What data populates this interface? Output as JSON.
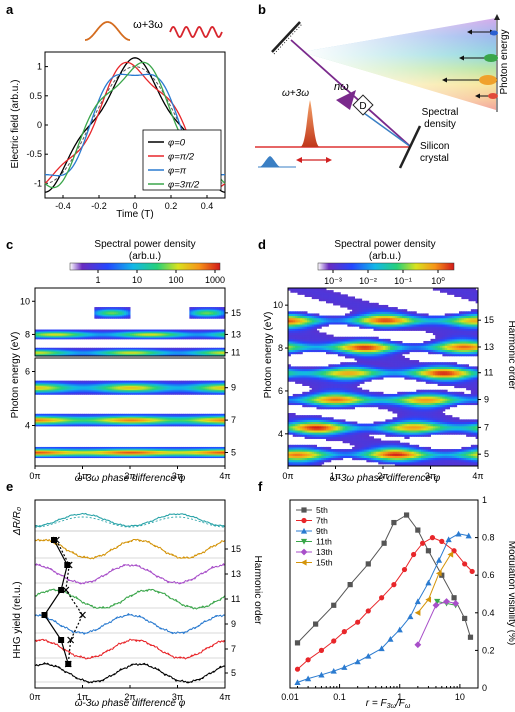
{
  "panel_letters": [
    "a",
    "b",
    "c",
    "d",
    "e",
    "f"
  ],
  "panel_a": {
    "header_label": "ω+3ω",
    "chart_data": {
      "type": "line",
      "xlabel": "Time (T)",
      "ylabel": "Electric field (arb.u.)",
      "xlim": [
        -0.5,
        0.5
      ],
      "ylim": [
        -1.25,
        1.25
      ],
      "x_ticks": [
        -0.4,
        -0.2,
        0,
        0.2,
        0.4
      ],
      "x_tick_labels": [
        "-0.4",
        "-0.2",
        "0",
        "0.2",
        "0.4"
      ],
      "y_ticks": [
        -1,
        -0.5,
        0,
        0.5,
        1
      ],
      "y_tick_labels": [
        "-1",
        "-0.5",
        "0",
        "0.5",
        "1"
      ],
      "third_harmonic_amplitude": 0.15,
      "series": [
        {
          "name": "φ=0",
          "phase": 0,
          "color": "#000000"
        },
        {
          "name": "φ=π/2",
          "phase": 1.5708,
          "color": "#e8262a"
        },
        {
          "name": "φ=π",
          "phase": 3.1416,
          "color": "#2b7bd0"
        },
        {
          "name": "φ=3π/2",
          "phase": 4.7124,
          "color": "#3aa64a"
        }
      ],
      "reference": {
        "name": "",
        "style": "dashed",
        "color": "#555555"
      },
      "legend": "bottom-right"
    }
  },
  "panel_b": {
    "labels": {
      "photon_energy": "Photon energy",
      "spectral_density": "Spectral density",
      "n_omega": "nω",
      "beam": "ω+3ω",
      "detector": "D",
      "crystal_line1": "Silicon",
      "crystal_line2": "crystal"
    },
    "colors": {
      "beam": "#7a2a8c",
      "pulse_red": "#d2401a",
      "pulse_blue": "#3a7fc4",
      "arrow": "#d12020"
    }
  },
  "panel_c": {
    "colorbar_title_line1": "Spectral power density",
    "colorbar_title_line2": "(arb.u.)",
    "colorbar_ticks": [
      "1",
      "10",
      "100",
      "1000"
    ],
    "chart_data": {
      "type": "heatmap",
      "xlabel": "ω-3ω phase difference φ",
      "ylabel": "Photon energy (eV)",
      "xlim": [
        0,
        4
      ],
      "x_tick_labels": [
        "0π",
        "1π",
        "2π",
        "3π",
        "4π"
      ],
      "upper_ylim": [
        6.7,
        10.8
      ],
      "upper_y_ticks": [
        8,
        10
      ],
      "upper_y_tick_labels": [
        "8",
        "10"
      ],
      "lower_ylim": [
        2.5,
        6.5
      ],
      "lower_y_ticks": [
        4,
        6
      ],
      "lower_y_tick_labels": [
        "4",
        "6"
      ],
      "harmonic_labels": [
        "15",
        "13",
        "11",
        "9",
        "7",
        "5"
      ],
      "bands": [
        {
          "order": 15,
          "energy": 9.3,
          "width": 0.6,
          "base": 0.05,
          "amp": 0.6,
          "phase_shift": 1.6,
          "sparse": true
        },
        {
          "order": 13,
          "energy": 8.0,
          "width": 0.5,
          "base": 0.55,
          "amp": 0.2,
          "phase_shift": 0.4,
          "sparse": false
        },
        {
          "order": 11,
          "energy": 6.9,
          "width": 0.5,
          "base": 0.55,
          "amp": 0.2,
          "phase_shift": 0.0,
          "sparse": false
        },
        {
          "order": 9,
          "energy": 5.4,
          "width": 0.45,
          "base": 0.6,
          "amp": 0.2,
          "phase_shift": 0.0,
          "sparse": false
        },
        {
          "order": 7,
          "energy": 4.2,
          "width": 0.4,
          "base": 0.75,
          "amp": 0.15,
          "phase_shift": 0.0,
          "sparse": false
        },
        {
          "order": 5,
          "energy": 3.0,
          "width": 0.35,
          "base": 0.85,
          "amp": 0.1,
          "phase_shift": 0.0,
          "sparse": false
        }
      ]
    }
  },
  "panel_d": {
    "colorbar_title": "Spectral power density",
    "colorbar_units": "(arb.u.)",
    "colorbar_ticks": [
      "10⁻³",
      "10⁻²",
      "10⁻¹",
      "10⁰"
    ],
    "chart_data": {
      "type": "heatmap",
      "xlabel": "ω-3ω phase difference φ",
      "ylabel": "Photon energy (eV)",
      "y2label": "Harmonic order",
      "xlim": [
        0,
        4
      ],
      "ylim": [
        2.5,
        10.8
      ],
      "x_tick_labels": [
        "0π",
        "1π",
        "2π",
        "3π",
        "4π"
      ],
      "y_ticks": [
        4,
        6,
        8,
        10
      ],
      "y_tick_labels": [
        "4",
        "6",
        "8",
        "10"
      ],
      "harmonic_orders": [
        15,
        13,
        11,
        9,
        7,
        5
      ],
      "harmonic_labels": [
        "15",
        "13",
        "11",
        "9",
        "7",
        "5"
      ],
      "harmonic_energies": [
        9.3,
        8.05,
        6.85,
        5.6,
        4.3,
        3.05
      ]
    }
  },
  "panel_e": {
    "top_label": "ΔR/R₀",
    "chart_data": {
      "type": "line",
      "xlabel": "ω-3ω phase difference φ",
      "ylabel": "HHG yield (rel.u.)",
      "y2label": "Harmonic order",
      "xlim": [
        0,
        4
      ],
      "x_tick_labels": [
        "0π",
        "1π",
        "2π",
        "3π",
        "4π"
      ],
      "y2_tick_labels": [
        "15",
        "13",
        "11",
        "9",
        "7",
        "5"
      ],
      "series": [
        {
          "name": "5th",
          "order": 5,
          "color": "#000000",
          "phase": 0.2
        },
        {
          "name": "7th",
          "order": 7,
          "color": "#e8262a",
          "phase": 0.1
        },
        {
          "name": "9th",
          "order": 9,
          "color": "#2b7bd0",
          "phase": 0.0
        },
        {
          "name": "11th",
          "order": 11,
          "color": "#3aa64a",
          "phase": 0.4
        },
        {
          "name": "13th",
          "order": 13,
          "color": "#a84fc9",
          "phase": 0.0
        },
        {
          "name": "15th",
          "order": 15,
          "color": "#d4940a",
          "phase": 0.15
        }
      ],
      "reflectivity": {
        "color": "#29a3a8",
        "phase": 1.0
      },
      "peak_phase_solid": [
        0.4,
        0.68,
        0.55,
        0.2,
        0.55,
        0.7
      ],
      "peak_phase_dotted": [
        0.45,
        0.72,
        0.65,
        1.0,
        0.75,
        0.7
      ]
    }
  },
  "panel_f": {
    "xlabel_main": "r = F",
    "xlabel_sub1": "3ω",
    "xlabel_mid": "/F",
    "xlabel_sub2": "ω",
    "chart_data": {
      "type": "scatter",
      "xscale": "log",
      "xlim": [
        0.015,
        20
      ],
      "ylim": [
        0,
        1
      ],
      "x_ticks": [
        0.01,
        0.1,
        1,
        10
      ],
      "x_tick_labels": [
        "0.01",
        "0.1",
        "1",
        "10"
      ],
      "y_ticks": [
        0,
        0.2,
        0.4,
        0.6,
        0.8,
        1
      ],
      "y_tick_labels": [
        "0",
        "0.2",
        "0.4",
        "0.6",
        "0.8",
        "1"
      ],
      "y2_tick_labels": [
        "0",
        "20",
        "40",
        "60",
        "80",
        "100"
      ],
      "ylabel": "Modulation visibility (%)",
      "legend": "top-left",
      "series": [
        {
          "name": "5th",
          "color": "#555555",
          "marker": "square",
          "x": [
            0.02,
            0.04,
            0.08,
            0.15,
            0.3,
            0.55,
            0.8,
            1.3,
            2,
            3,
            5,
            8,
            12,
            15
          ],
          "y": [
            0.24,
            0.34,
            0.44,
            0.55,
            0.66,
            0.77,
            0.88,
            0.92,
            0.84,
            0.73,
            0.6,
            0.48,
            0.37,
            0.27
          ]
        },
        {
          "name": "7th",
          "color": "#e8262a",
          "marker": "circle",
          "x": [
            0.02,
            0.03,
            0.05,
            0.08,
            0.12,
            0.2,
            0.3,
            0.5,
            0.8,
            1.2,
            1.7,
            2.4,
            3.5,
            5,
            8,
            12,
            16
          ],
          "y": [
            0.1,
            0.15,
            0.2,
            0.25,
            0.3,
            0.35,
            0.41,
            0.48,
            0.55,
            0.63,
            0.71,
            0.77,
            0.8,
            0.78,
            0.73,
            0.66,
            0.62
          ]
        },
        {
          "name": "9th",
          "color": "#2b7bd0",
          "marker": "triangle-up",
          "x": [
            0.02,
            0.03,
            0.05,
            0.08,
            0.12,
            0.2,
            0.3,
            0.5,
            0.7,
            1.0,
            1.5,
            2.0,
            3.0,
            4.5,
            6.5,
            9.5,
            14
          ],
          "y": [
            0.03,
            0.05,
            0.07,
            0.09,
            0.11,
            0.14,
            0.17,
            0.21,
            0.26,
            0.31,
            0.38,
            0.46,
            0.56,
            0.68,
            0.79,
            0.82,
            0.81
          ]
        },
        {
          "name": "11th",
          "color": "#3aa64a",
          "marker": "triangle-down",
          "x": [
            4.2,
            6,
            8.5
          ],
          "y": [
            0.46,
            0.45,
            0.44
          ]
        },
        {
          "name": "13th",
          "color": "#a84fc9",
          "marker": "diamond",
          "x": [
            2.0,
            4.0,
            6.0,
            8.5
          ],
          "y": [
            0.23,
            0.44,
            0.46,
            0.45
          ]
        },
        {
          "name": "15th",
          "color": "#d4940a",
          "marker": "triangle-left",
          "x": [
            2.0,
            3.0,
            4.5,
            7.0
          ],
          "y": [
            0.4,
            0.47,
            0.61,
            0.71
          ]
        }
      ]
    }
  }
}
